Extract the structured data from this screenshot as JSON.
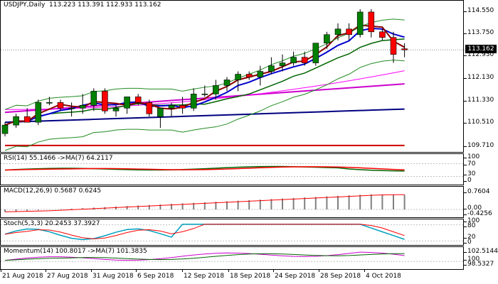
{
  "main": {
    "symbol": "USDJPY",
    "timeframe": "Daily",
    "ohlc": "113.223 113.391 112.933 113.162",
    "current_price": "113.162",
    "y_ticks": [
      "114.550",
      "113.750",
      "112.930",
      "112.130",
      "111.330",
      "110.510",
      "109.710"
    ],
    "colors": {
      "bull": "#008000",
      "bear": "#ff0000",
      "ma_fast": "#8b0000",
      "ma_mid": "#0000cd",
      "ma_slow": "#006400",
      "ma_pink": "#ff00ff",
      "ma_purple": "#cc00cc",
      "ma_navy": "#000080",
      "ma_red": "#cc0000",
      "bollinger": "#228b22",
      "grid": "#c0c0c0"
    }
  },
  "rsi": {
    "title": "RSI(14) 55.1466 ->MA(7) 64.2117",
    "ticks": [
      "100",
      "70",
      "30",
      "0"
    ]
  },
  "macd": {
    "title": "MACD(12,26,9) 0.5687 0.6245",
    "ticks": [
      "0.7604",
      "0.00",
      "-0.4256"
    ]
  },
  "stoch": {
    "title": "Stoch(5,3,3) 20.2453 37.3927",
    "ticks": [
      "100",
      "80",
      "20",
      "0"
    ]
  },
  "momentum": {
    "title": "Momentum(14) 100.8017 ->MA(7) 101.3835",
    "ticks": [
      "102.5144",
      "100",
      "98.5327"
    ]
  },
  "x_axis": {
    "labels": [
      "21 Aug 2018",
      "27 Aug 2018",
      "31 Aug 2018",
      "6 Sep 2018",
      "12 Sep 2018",
      "18 Sep 2018",
      "24 Sep 2018",
      "28 Sep 2018",
      "4 Oct 2018"
    ]
  },
  "chart_data": {
    "type": "candlestick",
    "title": "USDJPY,Daily",
    "ylim": [
      109.5,
      114.9
    ],
    "candles": [
      {
        "date": "2018-08-20",
        "o": 110.2,
        "h": 110.6,
        "l": 110.1,
        "c": 110.5
      },
      {
        "date": "2018-08-21",
        "o": 110.5,
        "h": 110.9,
        "l": 110.4,
        "c": 110.8
      },
      {
        "date": "2018-08-22",
        "o": 110.8,
        "h": 111.1,
        "l": 110.6,
        "c": 110.6
      },
      {
        "date": "2018-08-23",
        "o": 110.6,
        "h": 111.4,
        "l": 110.5,
        "c": 111.3
      },
      {
        "date": "2018-08-24",
        "o": 111.3,
        "h": 111.5,
        "l": 111.2,
        "c": 111.3
      },
      {
        "date": "2018-08-27",
        "o": 111.3,
        "h": 111.4,
        "l": 111.0,
        "c": 111.1
      },
      {
        "date": "2018-08-28",
        "o": 111.1,
        "h": 111.3,
        "l": 110.8,
        "c": 111.1
      },
      {
        "date": "2018-08-29",
        "o": 111.1,
        "h": 111.6,
        "l": 110.9,
        "c": 111.2
      },
      {
        "date": "2018-08-30",
        "o": 111.2,
        "h": 111.8,
        "l": 111.0,
        "c": 111.7
      },
      {
        "date": "2018-08-31",
        "o": 111.7,
        "h": 111.8,
        "l": 110.9,
        "c": 111.0
      },
      {
        "date": "2018-09-03",
        "o": 111.0,
        "h": 111.2,
        "l": 110.8,
        "c": 111.1
      },
      {
        "date": "2018-09-04",
        "o": 111.1,
        "h": 111.5,
        "l": 110.9,
        "c": 111.5
      },
      {
        "date": "2018-09-05",
        "o": 111.5,
        "h": 111.6,
        "l": 111.2,
        "c": 111.3
      },
      {
        "date": "2018-09-06",
        "o": 111.3,
        "h": 111.4,
        "l": 110.8,
        "c": 110.9
      },
      {
        "date": "2018-09-07",
        "o": 110.8,
        "h": 111.1,
        "l": 110.4,
        "c": 111.1
      },
      {
        "date": "2018-09-10",
        "o": 111.1,
        "h": 111.3,
        "l": 110.8,
        "c": 111.2
      },
      {
        "date": "2018-09-11",
        "o": 111.2,
        "h": 111.5,
        "l": 110.9,
        "c": 111.1
      },
      {
        "date": "2018-09-12",
        "o": 111.1,
        "h": 111.8,
        "l": 111.0,
        "c": 111.6
      },
      {
        "date": "2018-09-13",
        "o": 111.6,
        "h": 111.9,
        "l": 111.5,
        "c": 111.6
      },
      {
        "date": "2018-09-14",
        "o": 111.6,
        "h": 112.1,
        "l": 111.4,
        "c": 111.9
      },
      {
        "date": "2018-09-17",
        "o": 111.9,
        "h": 112.2,
        "l": 111.7,
        "c": 112.1
      },
      {
        "date": "2018-09-18",
        "o": 112.1,
        "h": 112.4,
        "l": 111.7,
        "c": 112.3
      },
      {
        "date": "2018-09-19",
        "o": 112.3,
        "h": 112.4,
        "l": 112.1,
        "c": 112.2
      },
      {
        "date": "2018-09-20",
        "o": 112.2,
        "h": 112.6,
        "l": 111.9,
        "c": 112.4
      },
      {
        "date": "2018-09-21",
        "o": 112.4,
        "h": 112.9,
        "l": 112.3,
        "c": 112.6
      },
      {
        "date": "2018-09-24",
        "o": 112.6,
        "h": 113.0,
        "l": 112.4,
        "c": 112.7
      },
      {
        "date": "2018-09-25",
        "o": 112.7,
        "h": 113.1,
        "l": 112.6,
        "c": 112.9
      },
      {
        "date": "2018-09-26",
        "o": 112.9,
        "h": 113.1,
        "l": 112.6,
        "c": 112.7
      },
      {
        "date": "2018-09-27",
        "o": 112.7,
        "h": 113.4,
        "l": 112.6,
        "c": 113.4
      },
      {
        "date": "2018-09-28",
        "o": 113.4,
        "h": 113.8,
        "l": 113.2,
        "c": 113.7
      },
      {
        "date": "2018-10-01",
        "o": 113.7,
        "h": 114.1,
        "l": 113.5,
        "c": 113.9
      },
      {
        "date": "2018-10-02",
        "o": 113.9,
        "h": 114.1,
        "l": 113.5,
        "c": 113.7
      },
      {
        "date": "2018-10-03",
        "o": 113.7,
        "h": 114.6,
        "l": 113.6,
        "c": 114.5
      },
      {
        "date": "2018-10-04",
        "o": 114.5,
        "h": 114.6,
        "l": 113.6,
        "c": 113.8
      },
      {
        "date": "2018-10-05",
        "o": 113.8,
        "h": 113.9,
        "l": 113.5,
        "c": 113.6
      },
      {
        "date": "2018-10-08",
        "o": 113.6,
        "h": 113.8,
        "l": 112.7,
        "c": 113.0
      },
      {
        "date": "2018-10-09",
        "o": 113.2,
        "h": 113.4,
        "l": 112.9,
        "c": 113.16
      }
    ]
  }
}
